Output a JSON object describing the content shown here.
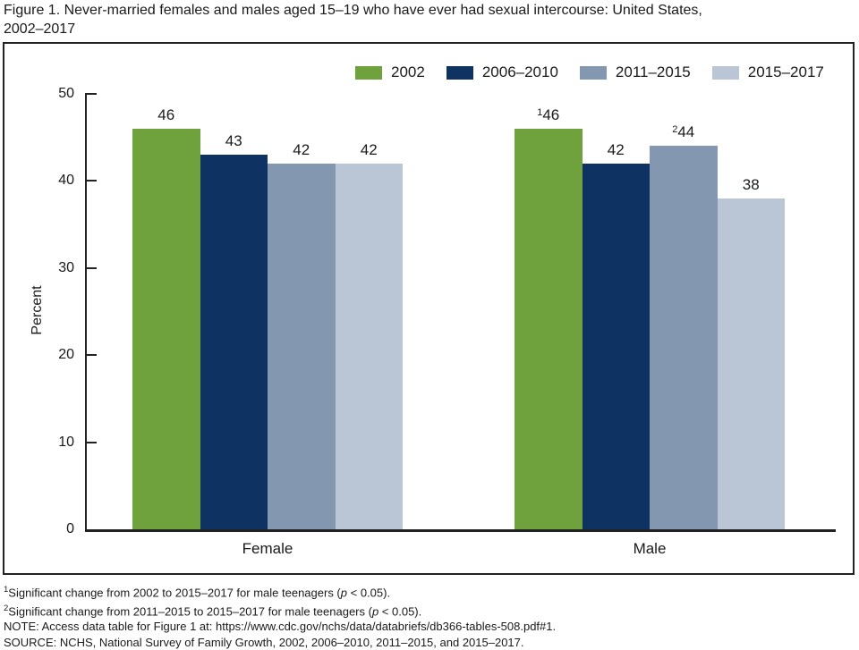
{
  "title": {
    "line1": "Figure 1. Never-married females and males aged 15–19 who have ever had sexual intercourse: United States,",
    "line2": "2002–2017"
  },
  "chart_data": {
    "type": "bar",
    "title": "Never-married females and males aged 15–19 who have ever had sexual intercourse: United States, 2002–2017",
    "ylabel": "Percent",
    "ylim": [
      0,
      50
    ],
    "yticks": [
      0,
      10,
      20,
      30,
      40,
      50
    ],
    "grid": false,
    "legend_position": "top-right",
    "categories": [
      "Female",
      "Male"
    ],
    "series": [
      {
        "name": "2002",
        "color": "#6fa23c",
        "values": [
          46,
          46
        ],
        "sups": [
          "",
          "1"
        ]
      },
      {
        "name": "2006–2010",
        "color": "#0e3362",
        "values": [
          43,
          42
        ],
        "sups": [
          "",
          ""
        ]
      },
      {
        "name": "2011–2015",
        "color": "#8497b1",
        "values": [
          42,
          44
        ],
        "sups": [
          "",
          "2"
        ]
      },
      {
        "name": "2015–2017",
        "color": "#bac6d6",
        "values": [
          42,
          38
        ],
        "sups": [
          "",
          ""
        ]
      }
    ]
  },
  "colors": {
    "axis": "#222222",
    "text": "#1a1a1a"
  },
  "footnotes": {
    "fn1": {
      "sup": "1",
      "text": "Significant change from 2002 to 2015–2017 for male teenagers (",
      "p": "p",
      "tail": " < 0.05)."
    },
    "fn2": {
      "sup": "2",
      "text": "Significant change from 2011–2015 to 2015–2017 for male teenagers (",
      "p": "p",
      "tail": " < 0.05)."
    },
    "note": "NOTE: Access data table for Figure 1 at: https://www.cdc.gov/nchs/data/databriefs/db366-tables-508.pdf#1.",
    "source": "SOURCE: NCHS, National Survey of Family Growth, 2002, 2006–2010, 2011–2015, and 2015–2017."
  }
}
